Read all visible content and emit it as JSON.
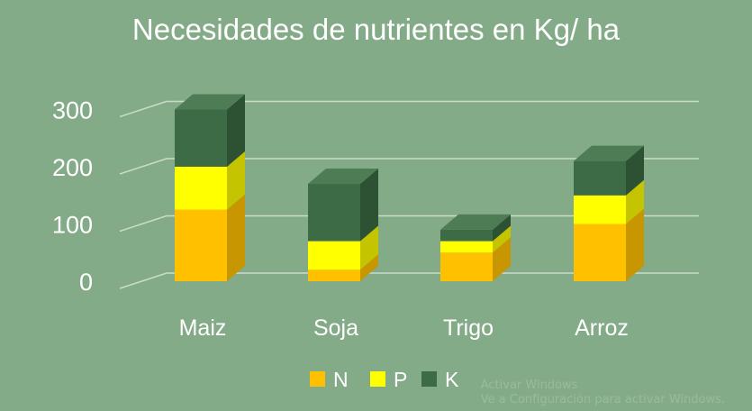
{
  "chart_data": {
    "type": "bar",
    "stacked": true,
    "three_d": true,
    "title": "Necesidades de nutrientes en Kg/ ha",
    "categories": [
      "Maiz",
      "Soja",
      "Trigo",
      "Arroz"
    ],
    "series": [
      {
        "name": "N",
        "values": [
          125,
          20,
          50,
          100
        ],
        "color": "#ffc000",
        "side_color": "#c89600",
        "top_color": "#ffd24d"
      },
      {
        "name": "P",
        "values": [
          75,
          50,
          20,
          50
        ],
        "color": "#ffff00",
        "side_color": "#c4c400",
        "top_color": "#ffff66"
      },
      {
        "name": "K",
        "values": [
          100,
          100,
          20,
          60
        ],
        "color": "#3d6b45",
        "side_color": "#2c5233",
        "top_color": "#4e7d55"
      }
    ],
    "yticks": [
      "0",
      "100",
      "200",
      "300"
    ],
    "ylim": [
      0,
      300
    ],
    "grid": true,
    "legend_position": "bottom"
  },
  "watermark": {
    "line1": "Activar Windows",
    "line2": "Ve a Configuración para activar Windows."
  },
  "colors": {
    "background": "#84ab88",
    "text": "#ffffff",
    "grid": "#c9dcc9"
  }
}
